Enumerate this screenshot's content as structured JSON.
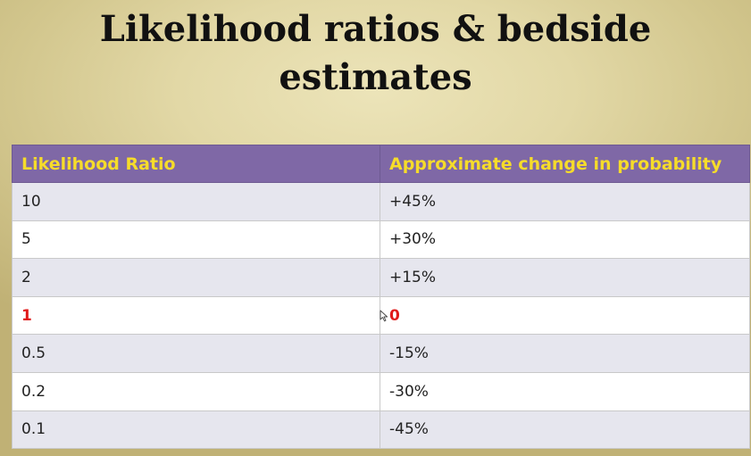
{
  "slide": {
    "title": "Likelihood ratios & bedside estimates"
  },
  "table": {
    "headers": [
      "Likelihood Ratio",
      "Approximate change in probability"
    ],
    "rows": [
      {
        "ratio": "10",
        "change": "+45%"
      },
      {
        "ratio": "5",
        "change": "+30%"
      },
      {
        "ratio": "2",
        "change": "+15%"
      },
      {
        "ratio": "1",
        "change": "0"
      },
      {
        "ratio": "0.5",
        "change": "-15%"
      },
      {
        "ratio": "0.2",
        "change": "-30%"
      },
      {
        "ratio": "0.1",
        "change": "-45%"
      }
    ]
  },
  "colors": {
    "header_bg": "#7f68a6",
    "header_text": "#f6dc2a",
    "highlight_text": "#e01a1a"
  },
  "icons": {
    "cursor": "mouse-pointer-icon"
  }
}
